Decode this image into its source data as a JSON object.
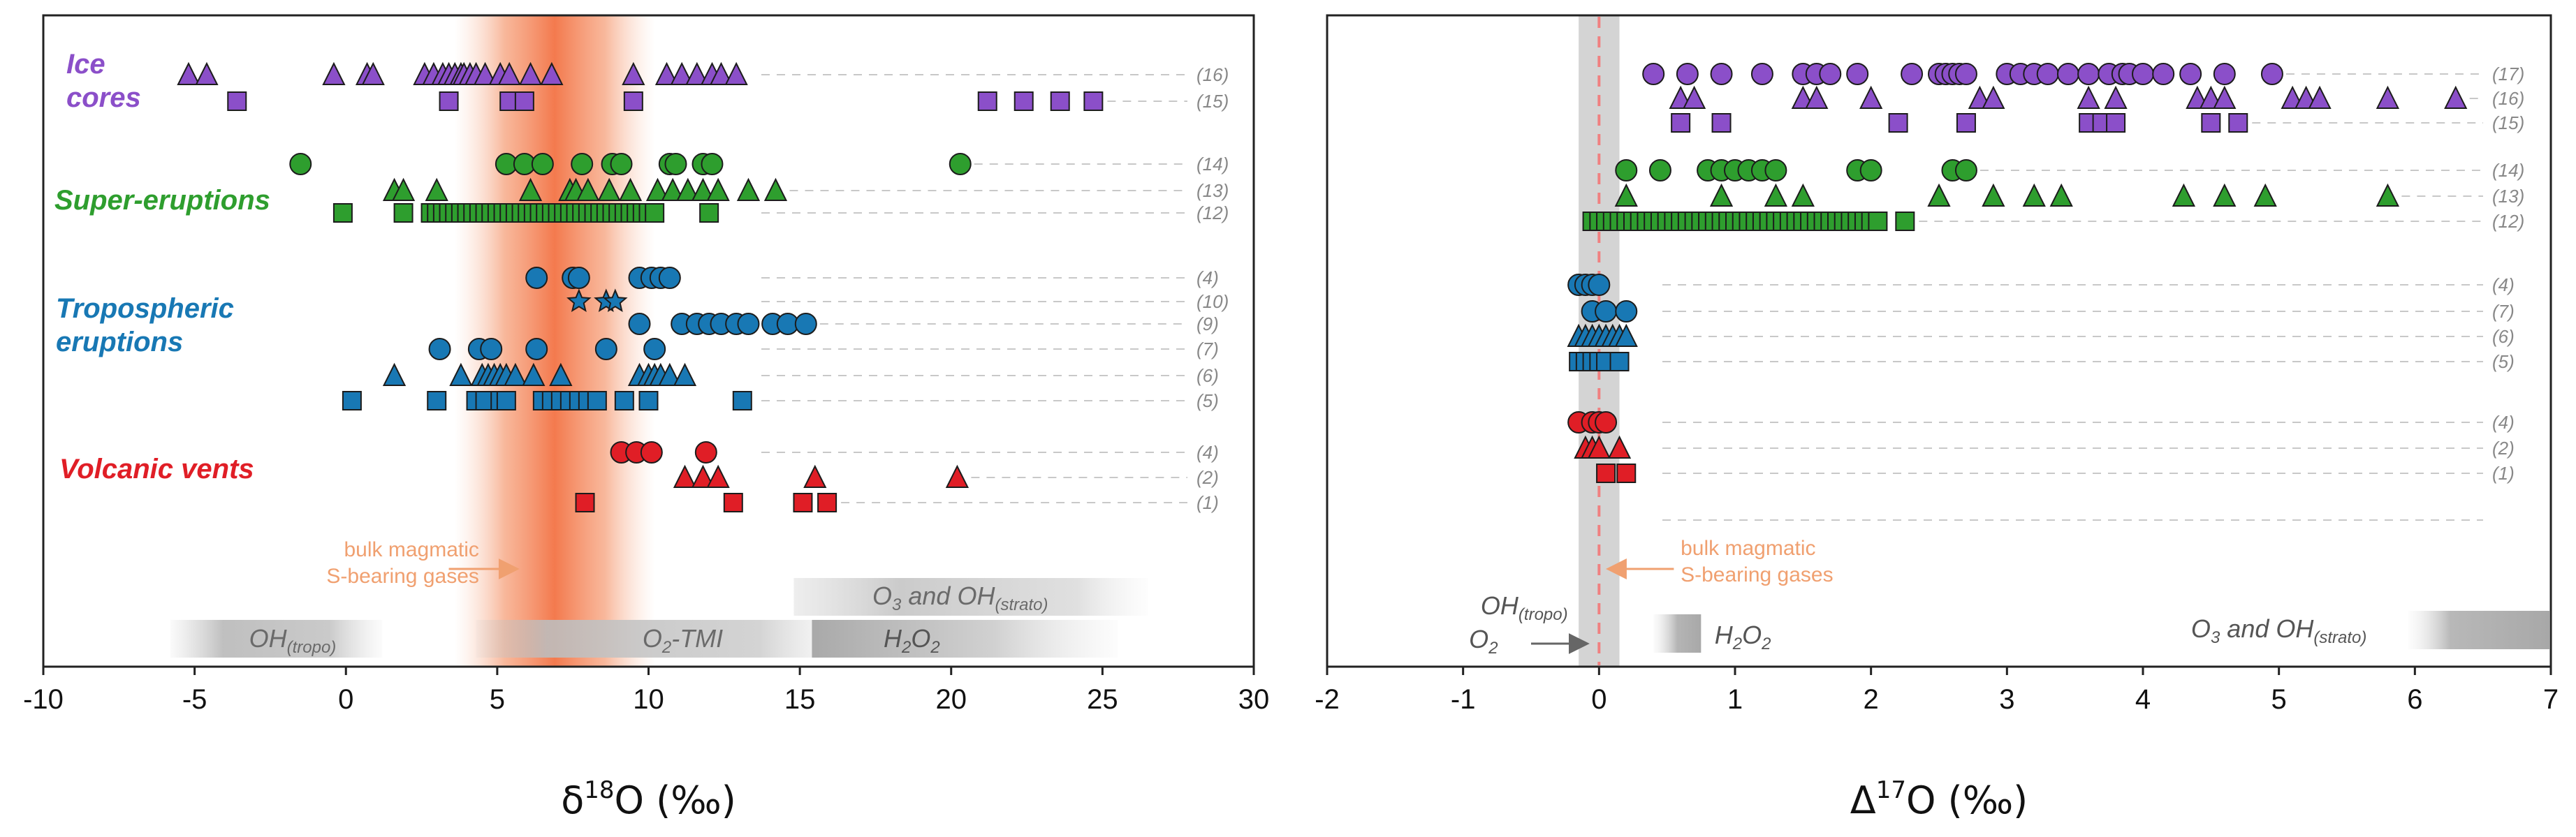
{
  "chart_data": [
    {
      "type": "scatter",
      "panel": "left",
      "xlabel_main": "δ",
      "xlabel_sup": "18",
      "xlabel_rest": "O (‰)",
      "xlim": [
        -10,
        30
      ],
      "xticks": [
        "-10",
        "-5",
        "0",
        "5",
        "10",
        "15",
        "20",
        "25",
        "30"
      ],
      "groups": [
        {
          "name": "Ice cores",
          "label_lines": [
            "Ice",
            "cores"
          ],
          "color": "#8B4FC9"
        },
        {
          "name": "Super-eruptions",
          "label_lines": [
            "Super-eruptions"
          ],
          "color": "#2E9E2E"
        },
        {
          "name": "Tropospheric eruptions",
          "label_lines": [
            "Tropospheric",
            "eruptions"
          ],
          "color": "#1878B4"
        },
        {
          "name": "Volcanic vents",
          "label_lines": [
            "Volcanic vents"
          ],
          "color": "#E01E26"
        }
      ],
      "rows": [
        {
          "ref": "(16)",
          "group": "Ice cores",
          "marker": "triangle",
          "color": "#8B4FC9",
          "x": [
            -5.2,
            -4.6,
            -0.4,
            0.7,
            0.9,
            2.6,
            2.9,
            3.2,
            3.4,
            3.6,
            3.8,
            3.9,
            4.1,
            4.3,
            4.6,
            5.1,
            5.4,
            6.1,
            6.8,
            9.5,
            10.6,
            11.1,
            11.6,
            12.1,
            12.4,
            12.9
          ]
        },
        {
          "ref": "(15)",
          "group": "Ice cores",
          "marker": "square",
          "color": "#8B4FC9",
          "x": [
            -3.6,
            3.4,
            5.4,
            5.9,
            9.5,
            21.2,
            22.4,
            23.6,
            24.7
          ]
        },
        {
          "ref": "(14)",
          "group": "Super-eruptions",
          "marker": "circle",
          "color": "#2E9E2E",
          "x": [
            -1.5,
            5.3,
            5.9,
            6.5,
            7.8,
            8.8,
            9.1,
            10.7,
            10.9,
            11.8,
            12.1,
            20.3
          ]
        },
        {
          "ref": "(13)",
          "group": "Super-eruptions",
          "marker": "triangle",
          "color": "#2E9E2E",
          "x": [
            1.6,
            1.9,
            3.0,
            6.1,
            7.4,
            7.6,
            8.0,
            8.7,
            9.4,
            10.3,
            10.8,
            11.3,
            11.8,
            12.3,
            13.3,
            14.2
          ]
        },
        {
          "ref": "(12)",
          "group": "Super-eruptions",
          "marker": "square",
          "color": "#2E9E2E",
          "x": [
            -0.1,
            1.9,
            2.8,
            3.0,
            3.2,
            3.4,
            3.6,
            3.8,
            4.0,
            4.2,
            4.4,
            4.6,
            4.8,
            5.0,
            5.2,
            5.4,
            5.6,
            5.8,
            6.0,
            6.2,
            6.4,
            6.6,
            6.8,
            7.0,
            7.2,
            7.4,
            7.6,
            7.8,
            8.0,
            8.2,
            8.4,
            8.6,
            8.8,
            9.0,
            9.2,
            9.4,
            9.6,
            9.8,
            10.0,
            10.2,
            12.0
          ]
        },
        {
          "ref": "(4)",
          "group": "Tropospheric eruptions",
          "marker": "circle",
          "color": "#1878B4",
          "x": [
            6.3,
            7.5,
            7.7,
            9.7,
            10.1,
            10.4,
            10.7
          ]
        },
        {
          "ref": "(10)",
          "group": "Tropospheric eruptions",
          "marker": "star",
          "color": "#1878B4",
          "x": [
            7.7,
            8.6,
            8.9
          ]
        },
        {
          "ref": "(9)",
          "group": "Tropospheric eruptions",
          "marker": "circle",
          "color": "#1878B4",
          "x": [
            9.7,
            11.1,
            11.6,
            12.0,
            12.4,
            12.9,
            13.3,
            14.1,
            14.6,
            15.2
          ]
        },
        {
          "ref": "(7)",
          "group": "Tropospheric eruptions",
          "marker": "circle",
          "color": "#1878B4",
          "x": [
            3.1,
            4.4,
            4.8,
            6.3,
            8.6,
            10.2
          ]
        },
        {
          "ref": "(6)",
          "group": "Tropospheric eruptions",
          "marker": "triangle",
          "color": "#1878B4",
          "x": [
            1.6,
            3.8,
            4.5,
            4.7,
            4.9,
            5.1,
            5.3,
            5.6,
            6.2,
            7.1,
            9.7,
            10.0,
            10.2,
            10.4,
            10.7,
            11.2
          ]
        },
        {
          "ref": "(5)",
          "group": "Tropospheric eruptions",
          "marker": "square",
          "color": "#1878B4",
          "x": [
            0.2,
            3.0,
            4.3,
            4.6,
            5.1,
            5.3,
            6.5,
            6.8,
            7.1,
            7.4,
            7.7,
            8.0,
            8.3,
            9.2,
            10.0,
            13.1
          ]
        },
        {
          "ref": "(4)",
          "group": "Volcanic vents",
          "marker": "circle",
          "color": "#E01E26",
          "x": [
            9.1,
            9.6,
            10.1,
            11.9
          ]
        },
        {
          "ref": "(2)",
          "group": "Volcanic vents",
          "marker": "triangle",
          "color": "#E01E26",
          "x": [
            11.2,
            11.8,
            12.3,
            15.5,
            20.2
          ]
        },
        {
          "ref": "(1)",
          "group": "Volcanic vents",
          "marker": "square",
          "color": "#E01E26",
          "x": [
            7.9,
            12.8,
            15.1,
            15.9
          ]
        }
      ],
      "shaded_range": {
        "from": 4.5,
        "to": 9.3,
        "color": "#F26B3A"
      },
      "bulk_label_lines": [
        "bulk magmatic",
        "S-bearing gases"
      ],
      "bulk_label_color": "#F0A070",
      "reference_bands": [
        {
          "label": "OH",
          "sub": "(tropo)",
          "from": -5.8,
          "to": 1.2
        },
        {
          "label": "O",
          "sub": "2",
          "tail": "-TMI",
          "from": 4.3,
          "to": 16.0
        },
        {
          "label": "H",
          "sub": "2",
          "mid": "O",
          "sub2": "2",
          "from": 15.4,
          "to": 25.5
        },
        {
          "label": "O",
          "sub": "3",
          "tail": " and OH",
          "sub2": "(strato)",
          "from": 14.8,
          "to": 26.5
        }
      ]
    },
    {
      "type": "scatter",
      "panel": "right",
      "xlabel_main": "Δ",
      "xlabel_sup": "17",
      "xlabel_rest": "O (‰)",
      "xlim": [
        -2,
        7
      ],
      "xticks": [
        "-2",
        "-1",
        "0",
        "1",
        "2",
        "3",
        "4",
        "5",
        "6",
        "7"
      ],
      "rows": [
        {
          "ref": "(17)",
          "group": "Ice cores",
          "marker": "circle",
          "color": "#8B4FC9",
          "x": [
            0.4,
            0.65,
            0.9,
            1.2,
            1.5,
            1.6,
            1.7,
            1.9,
            2.3,
            2.5,
            2.55,
            2.6,
            2.65,
            2.7,
            3.0,
            3.1,
            3.2,
            3.3,
            3.45,
            3.6,
            3.75,
            3.85,
            3.9,
            4.0,
            4.15,
            4.35,
            4.6,
            4.95
          ]
        },
        {
          "ref": "(16)",
          "group": "Ice cores",
          "marker": "triangle",
          "color": "#8B4FC9",
          "x": [
            0.6,
            0.7,
            1.5,
            1.6,
            2.0,
            2.8,
            2.9,
            3.6,
            3.8,
            4.4,
            4.5,
            4.6,
            5.1,
            5.2,
            5.3,
            5.8,
            6.3
          ]
        },
        {
          "ref": "(15)",
          "group": "Ice cores",
          "marker": "square",
          "color": "#8B4FC9",
          "x": [
            0.6,
            0.9,
            2.2,
            2.7,
            3.6,
            3.7,
            3.8,
            4.5,
            4.7
          ]
        },
        {
          "ref": "(14)",
          "group": "Super-eruptions",
          "marker": "circle",
          "color": "#2E9E2E",
          "x": [
            0.2,
            0.45,
            0.8,
            0.9,
            1.0,
            1.1,
            1.2,
            1.3,
            1.9,
            2.0,
            2.6,
            2.7
          ]
        },
        {
          "ref": "(13)",
          "group": "Super-eruptions",
          "marker": "triangle",
          "color": "#2E9E2E",
          "x": [
            0.2,
            0.9,
            1.3,
            1.5,
            2.5,
            2.9,
            3.2,
            3.4,
            4.3,
            4.6,
            4.9,
            5.8
          ]
        },
        {
          "ref": "(12)",
          "group": "Super-eruptions",
          "marker": "square",
          "color": "#2E9E2E",
          "x": [
            -0.05,
            0.0,
            0.05,
            0.1,
            0.15,
            0.2,
            0.25,
            0.3,
            0.35,
            0.4,
            0.45,
            0.5,
            0.55,
            0.6,
            0.65,
            0.7,
            0.75,
            0.8,
            0.85,
            0.9,
            0.95,
            1.0,
            1.05,
            1.1,
            1.15,
            1.2,
            1.25,
            1.3,
            1.35,
            1.4,
            1.45,
            1.5,
            1.55,
            1.6,
            1.65,
            1.7,
            1.75,
            1.8,
            1.85,
            1.9,
            1.95,
            2.0,
            2.05,
            2.25
          ]
        },
        {
          "ref": "(4)",
          "group": "Tropospheric eruptions",
          "marker": "circle",
          "color": "#1878B4",
          "x": [
            -0.15,
            -0.1,
            -0.05,
            0.0
          ]
        },
        {
          "ref": "(7)",
          "group": "Tropospheric eruptions",
          "marker": "circle",
          "color": "#1878B4",
          "x": [
            -0.05,
            0.05,
            0.2
          ]
        },
        {
          "ref": "(6)",
          "group": "Tropospheric eruptions",
          "marker": "triangle",
          "color": "#1878B4",
          "x": [
            -0.15,
            -0.1,
            -0.05,
            0.0,
            0.05,
            0.1,
            0.15,
            0.2
          ]
        },
        {
          "ref": "(5)",
          "group": "Tropospheric eruptions",
          "marker": "square",
          "color": "#1878B4",
          "x": [
            -0.15,
            -0.1,
            -0.05,
            0.0,
            0.05,
            0.15
          ]
        },
        {
          "ref": "(4)",
          "group": "Volcanic vents",
          "marker": "circle",
          "color": "#E01E26",
          "x": [
            -0.15,
            -0.05,
            0.0,
            0.05
          ]
        },
        {
          "ref": "(2)",
          "group": "Volcanic vents",
          "marker": "triangle",
          "color": "#E01E26",
          "x": [
            -0.1,
            -0.05,
            0.0,
            0.15
          ]
        },
        {
          "ref": "(1)",
          "group": "Volcanic vents",
          "marker": "square",
          "color": "#E01E26",
          "x": [
            0.05,
            0.2
          ]
        }
      ],
      "shaded_range": {
        "from": -0.15,
        "to": 0.15,
        "color": "#BDBDBD"
      },
      "zero_line": {
        "x": 0,
        "color": "#F08080"
      },
      "bulk_label_lines": [
        "bulk magmatic",
        "S-bearing gases"
      ],
      "bulk_label_color": "#F0A070",
      "reference_labels": [
        {
          "label": "OH",
          "sub": "(tropo)"
        },
        {
          "label": "O",
          "sub": "2"
        },
        {
          "label": "H",
          "sub": "2",
          "mid": "O",
          "sub2": "2"
        },
        {
          "label": "O",
          "sub": "3",
          "tail": " and OH",
          "sub2": "(strato)"
        }
      ]
    }
  ]
}
